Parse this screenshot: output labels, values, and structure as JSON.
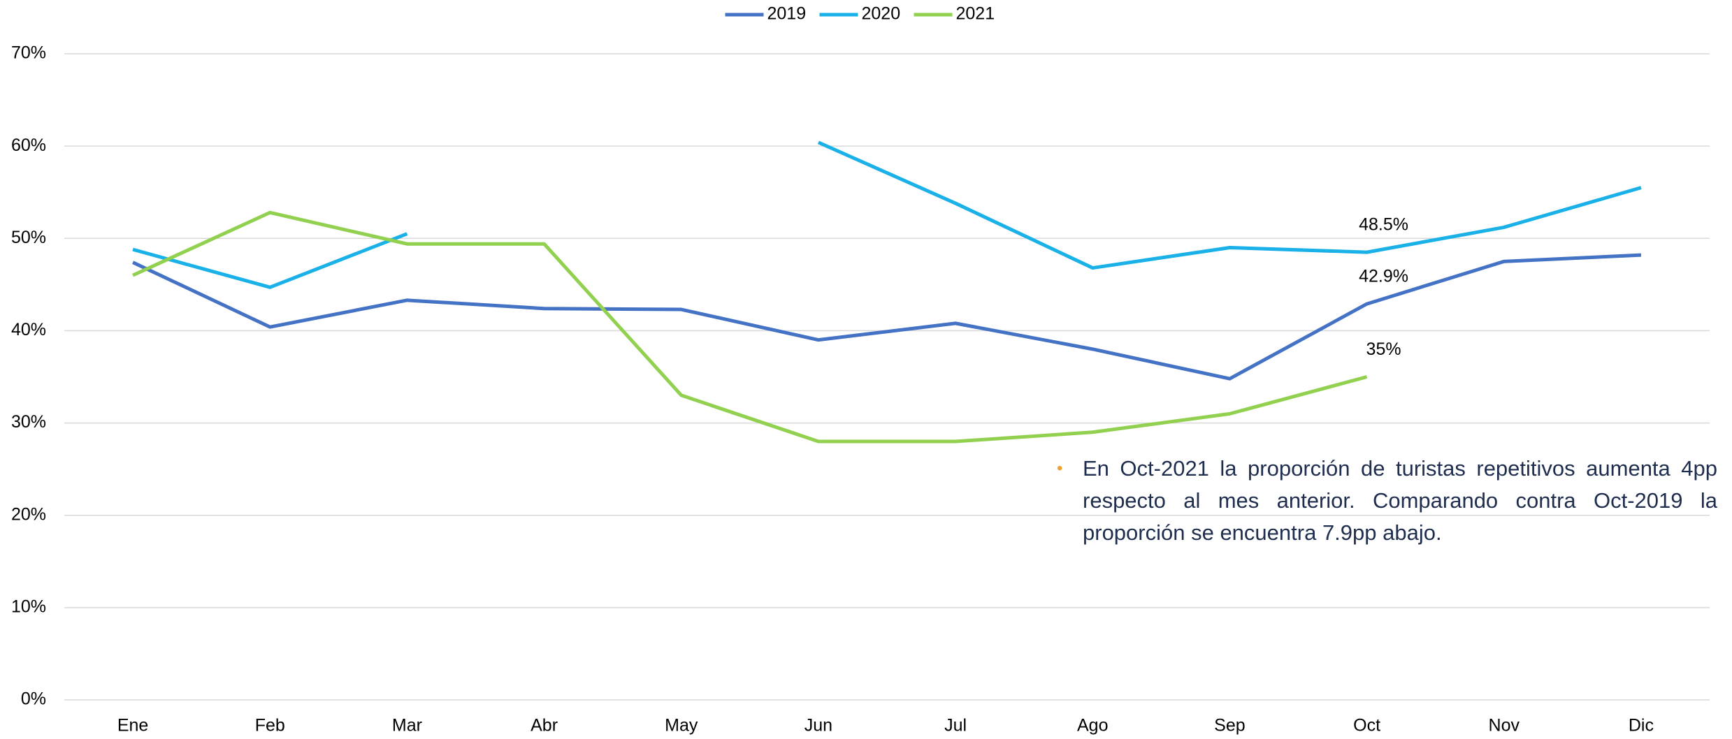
{
  "chart_data": {
    "type": "line",
    "categories": [
      "Ene",
      "Feb",
      "Mar",
      "Abr",
      "May",
      "Jun",
      "Jul",
      "Ago",
      "Sep",
      "Oct",
      "Nov",
      "Dic"
    ],
    "series": [
      {
        "name": "2019",
        "color": "#4472c4",
        "values": [
          47.4,
          40.4,
          43.3,
          42.4,
          42.3,
          39.0,
          40.8,
          38.0,
          34.8,
          42.9,
          47.5,
          48.2
        ],
        "value_labels": [
          null,
          null,
          null,
          null,
          null,
          null,
          null,
          null,
          null,
          "42.9%",
          null,
          null
        ]
      },
      {
        "name": "2020",
        "color": "#1ab0e8",
        "values": [
          48.8,
          44.7,
          50.5,
          null,
          null,
          60.4,
          53.8,
          46.8,
          49.0,
          48.5,
          51.2,
          55.5
        ],
        "value_labels": [
          null,
          null,
          null,
          null,
          null,
          null,
          null,
          null,
          null,
          "48.5%",
          null,
          null
        ]
      },
      {
        "name": "2021",
        "color": "#92d050",
        "values": [
          46.0,
          52.8,
          49.4,
          49.4,
          33.0,
          28.0,
          28.0,
          29.0,
          31.0,
          35.0,
          null,
          null
        ],
        "value_labels": [
          null,
          null,
          null,
          null,
          null,
          null,
          null,
          null,
          null,
          "35%",
          null,
          null
        ]
      }
    ],
    "ylim": [
      0,
      70
    ],
    "yticks": [
      {
        "value": 0,
        "label": "0%"
      },
      {
        "value": 10,
        "label": "10%"
      },
      {
        "value": 20,
        "label": "20%"
      },
      {
        "value": 30,
        "label": "30%"
      },
      {
        "value": 40,
        "label": "40%"
      },
      {
        "value": 50,
        "label": "50%"
      },
      {
        "value": 60,
        "label": "60%"
      },
      {
        "value": 70,
        "label": "70%"
      }
    ],
    "grid": true,
    "legend": "top",
    "annotation": "En Oct-2021 la proporción de turistas repetitivos aumenta 4pp respecto al mes anterior. Comparando contra Oct-2019 la proporción se encuentra 7.9pp abajo."
  }
}
